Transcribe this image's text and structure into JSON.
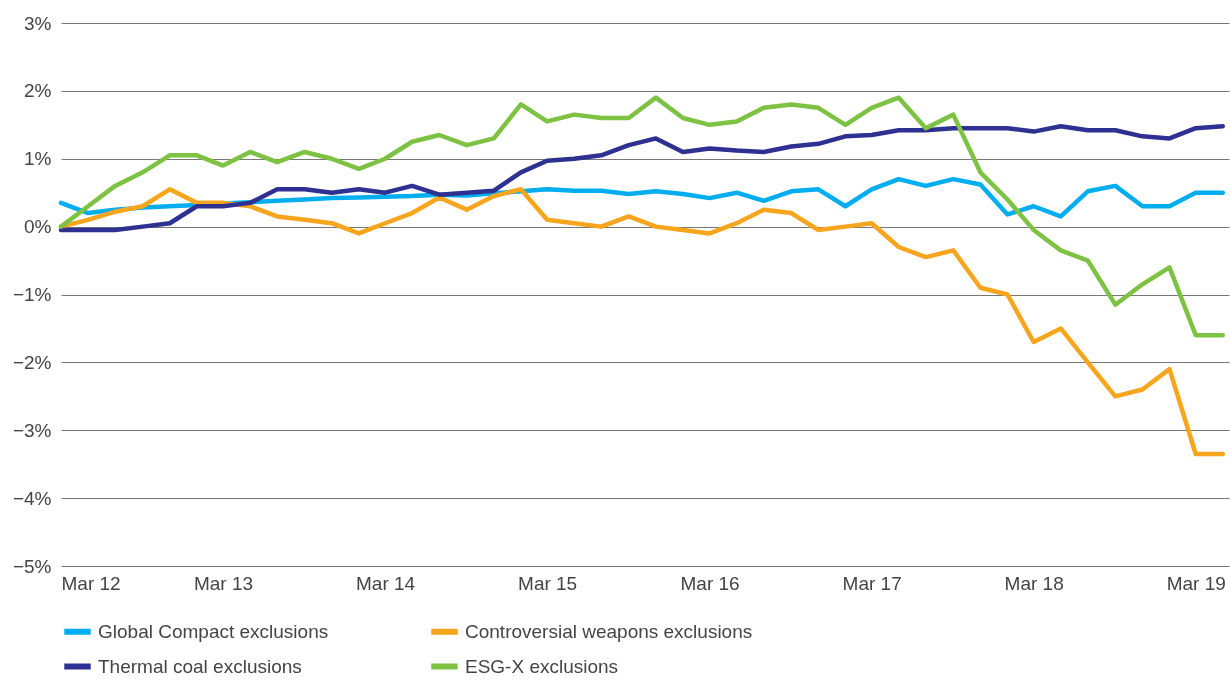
{
  "chart_data": {
    "type": "line",
    "x": [
      "2012-03",
      "2012-05",
      "2012-07",
      "2012-09",
      "2012-11",
      "2013-01",
      "2013-03",
      "2013-05",
      "2013-07",
      "2013-09",
      "2013-11",
      "2014-01",
      "2014-03",
      "2014-05",
      "2014-07",
      "2014-09",
      "2014-11",
      "2015-01",
      "2015-03",
      "2015-05",
      "2015-07",
      "2015-09",
      "2015-11",
      "2016-01",
      "2016-03",
      "2016-05",
      "2016-07",
      "2016-09",
      "2016-11",
      "2017-01",
      "2017-03",
      "2017-05",
      "2017-07",
      "2017-09",
      "2017-11",
      "2018-01",
      "2018-03",
      "2018-05",
      "2018-07",
      "2018-09",
      "2018-11",
      "2019-01",
      "2019-03",
      "2019-05"
    ],
    "series": [
      {
        "name": "Global Compact exclusions",
        "color": "#00aeef",
        "values": [
          0.35,
          0.2,
          0.25,
          0.28,
          0.3,
          0.32,
          0.34,
          0.36,
          0.38,
          0.4,
          0.42,
          0.43,
          0.44,
          0.45,
          0.47,
          0.46,
          0.49,
          0.52,
          0.55,
          0.53,
          0.53,
          0.48,
          0.52,
          0.48,
          0.42,
          0.5,
          0.38,
          0.52,
          0.55,
          0.3,
          0.55,
          0.7,
          0.6,
          0.7,
          0.62,
          0.18,
          0.3,
          0.15,
          0.52,
          0.6,
          0.3,
          0.3,
          0.5,
          0.5
        ]
      },
      {
        "name": "Controversial weapons exclusions",
        "color": "#f7a51d",
        "values": [
          0.0,
          0.1,
          0.22,
          0.3,
          0.55,
          0.35,
          0.35,
          0.3,
          0.15,
          0.1,
          0.05,
          -0.1,
          0.05,
          0.2,
          0.43,
          0.25,
          0.45,
          0.55,
          0.1,
          0.05,
          0.0,
          0.15,
          0.0,
          -0.05,
          -0.1,
          0.05,
          0.25,
          0.2,
          -0.05,
          0.0,
          0.05,
          -0.3,
          -0.45,
          -0.35,
          -0.9,
          -1.0,
          -1.7,
          -1.5,
          -2.0,
          -2.5,
          -2.4,
          -2.1,
          -3.35,
          -3.35
        ]
      },
      {
        "name": "Thermal coal exclusions",
        "color": "#2e3192",
        "values": [
          -0.05,
          -0.05,
          -0.05,
          0.0,
          0.05,
          0.3,
          0.3,
          0.35,
          0.55,
          0.55,
          0.5,
          0.55,
          0.5,
          0.6,
          0.47,
          0.5,
          0.53,
          0.8,
          0.97,
          1.0,
          1.05,
          1.2,
          1.3,
          1.1,
          1.15,
          1.12,
          1.1,
          1.18,
          1.22,
          1.33,
          1.35,
          1.42,
          1.42,
          1.45,
          1.45,
          1.45,
          1.4,
          1.48,
          1.42,
          1.42,
          1.33,
          1.3,
          1.45,
          1.48
        ]
      },
      {
        "name": "ESG-X exclusions",
        "color": "#7dc242",
        "values": [
          0.0,
          0.3,
          0.6,
          0.8,
          1.05,
          1.05,
          0.9,
          1.1,
          0.95,
          1.1,
          1.0,
          0.85,
          1.0,
          1.25,
          1.35,
          1.2,
          1.3,
          1.8,
          1.55,
          1.65,
          1.6,
          1.6,
          1.9,
          1.6,
          1.5,
          1.55,
          1.75,
          1.8,
          1.75,
          1.5,
          1.75,
          1.9,
          1.45,
          1.65,
          0.8,
          0.4,
          -0.05,
          -0.35,
          -0.5,
          -1.15,
          -0.85,
          -0.6,
          -1.6,
          -1.6
        ]
      }
    ],
    "xlim": [
      "2012-03-01",
      "2019-05-15"
    ],
    "xticks": [
      {
        "value": "2012-03-01",
        "label": "Mar 12"
      },
      {
        "value": "2013-03-01",
        "label": "Mar 13"
      },
      {
        "value": "2014-03-01",
        "label": "Mar 14"
      },
      {
        "value": "2015-03-01",
        "label": "Mar 15"
      },
      {
        "value": "2016-03-01",
        "label": "Mar 16"
      },
      {
        "value": "2017-03-01",
        "label": "Mar 17"
      },
      {
        "value": "2018-03-01",
        "label": "Mar 18"
      },
      {
        "value": "2019-03-01",
        "label": "Mar 19"
      }
    ],
    "ylim": [
      -5,
      3
    ],
    "yticks": [
      {
        "value": 3,
        "label": "3%"
      },
      {
        "value": 2,
        "label": "2%"
      },
      {
        "value": 1,
        "label": "1%"
      },
      {
        "value": 0,
        "label": "0%"
      },
      {
        "value": -1,
        "label": "−1%"
      },
      {
        "value": -2,
        "label": "−2%"
      },
      {
        "value": -3,
        "label": "−3%"
      },
      {
        "value": -4,
        "label": "−4%"
      },
      {
        "value": -5,
        "label": "−5%"
      }
    ],
    "grid": "y",
    "legend": "bottom",
    "line_style": "solid"
  }
}
